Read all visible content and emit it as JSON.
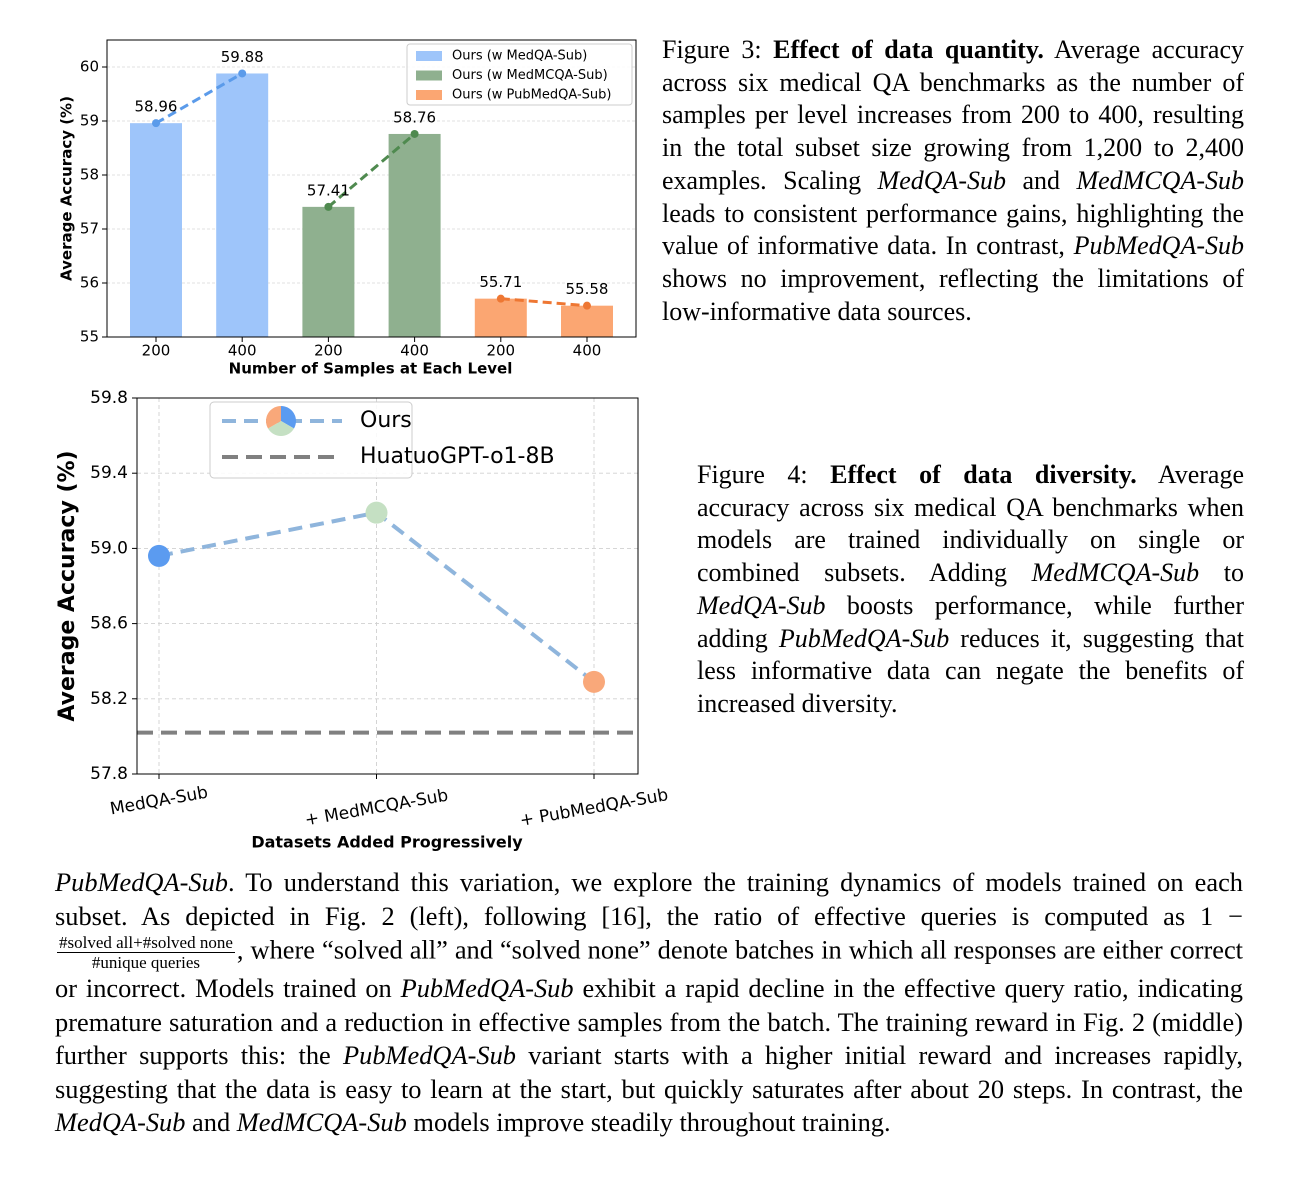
{
  "chart_data": [
    {
      "type": "bar",
      "categories": [
        "200",
        "400",
        "200",
        "400",
        "200",
        "400"
      ],
      "series": [
        {
          "name": "Ours (w MedQA-Sub)",
          "color": "#9ec5fa",
          "line_color": "#5b9bea",
          "values": [
            58.96,
            59.88,
            null,
            null,
            null,
            null
          ]
        },
        {
          "name": "Ours (w MedMCQA-Sub)",
          "color": "#8fb08f",
          "line_color": "#4f8a4f",
          "values": [
            null,
            null,
            57.41,
            58.76,
            null,
            null
          ]
        },
        {
          "name": "Ours (w PubMedQA-Sub)",
          "color": "#fba672",
          "line_color": "#ee7733",
          "values": [
            null,
            null,
            null,
            null,
            55.71,
            55.58
          ]
        }
      ],
      "xlabel": "Number of Samples at Each Level",
      "ylabel": "Average Accuracy (%)",
      "ylim": [
        55,
        60.5
      ],
      "yticks": [
        55,
        56,
        57,
        58,
        59,
        60
      ],
      "grid": true,
      "legend": "upper right"
    },
    {
      "type": "line",
      "categories": [
        "MedQA-Sub",
        "+ MedMCQA-Sub",
        "+ PubMedQA-Sub"
      ],
      "series": [
        {
          "name": "Ours",
          "color": "#8fb5dc",
          "values": [
            58.96,
            59.19,
            58.29
          ],
          "point_colors": [
            "#5b9bf0",
            "#c5e0c3",
            "#f9a87a"
          ]
        }
      ],
      "baseline": {
        "name": "HuatuoGPT-o1-8B",
        "value": 58.02,
        "color": "#808080"
      },
      "xlabel": "Datasets Added Progressively",
      "ylabel": "Average Accuracy (%)",
      "ylim": [
        57.8,
        59.8
      ],
      "yticks": [
        57.8,
        58.2,
        58.6,
        {
          "value": 59,
          "label": "59.0"
        },
        59.4,
        59.8
      ],
      "grid": true,
      "legend": "upper left"
    }
  ],
  "captions": [
    {
      "parts": [
        {
          "text": "Figure 3: ",
          "style": "normal"
        },
        {
          "text": "Effect of data quantity.",
          "style": "bold"
        },
        {
          "text": " Average accuracy across six medical QA benchmarks as the number of samples per level increases from 200 to 400, resulting in the total subset size growing from 1,200 to 2,400 examples. Scaling ",
          "style": "normal"
        },
        {
          "text": "MedQA-Sub",
          "style": "italic"
        },
        {
          "text": " and ",
          "style": "normal"
        },
        {
          "text": "MedMCQA-Sub",
          "style": "italic"
        },
        {
          "text": " leads to consistent performance gains, highlighting the value of informative data. In contrast, ",
          "style": "normal"
        },
        {
          "text": "PubMedQA-Sub",
          "style": "italic"
        },
        {
          "text": " shows no improvement, reflecting the limitations of low-informative data sources.",
          "style": "normal"
        }
      ]
    },
    {
      "parts": [
        {
          "text": "Figure 4: ",
          "style": "normal"
        },
        {
          "text": "Effect of data diversity.",
          "style": "bold"
        },
        {
          "text": " Average accuracy across six medical QA benchmarks when models are trained individually on single or combined subsets. Adding ",
          "style": "normal"
        },
        {
          "text": "MedMCQA-Sub",
          "style": "italic"
        },
        {
          "text": " to ",
          "style": "normal"
        },
        {
          "text": "MedQA-Sub",
          "style": "italic"
        },
        {
          "text": " boosts performance, while further adding ",
          "style": "normal"
        },
        {
          "text": "PubMedQA-Sub",
          "style": "italic"
        },
        {
          "text": " reduces it, suggesting that less informative data can negate the benefits of increased diversity.",
          "style": "normal"
        }
      ]
    }
  ],
  "body": {
    "parts": [
      {
        "text": "PubMedQA-Sub",
        "style": "italic"
      },
      {
        "text": ". To understand this variation, we explore the training dynamics of models trained on each subset. As depicted in Fig. 2 (left), following [16], the ratio of effective queries is computed as 1 − ",
        "style": "normal"
      },
      {
        "num": "#solved all+#solved none",
        "den": "#unique queries"
      },
      {
        "text": ", where “solved all” and “solved none” denote batches in which all responses are either correct or incorrect. Models trained on ",
        "style": "normal"
      },
      {
        "text": "PubMedQA-Sub",
        "style": "italic"
      },
      {
        "text": " exhibit a rapid decline in the effective query ratio, indicating premature saturation and a reduction in effective samples from the batch. The training reward in Fig. 2 (middle) further supports this: the ",
        "style": "normal"
      },
      {
        "text": "PubMedQA-Sub",
        "style": "italic"
      },
      {
        "text": " variant starts with a higher initial reward and increases rapidly, suggesting that the data is easy to learn at the start, but quickly saturates after about 20 steps. In contrast, the ",
        "style": "normal"
      },
      {
        "text": "MedQA-Sub",
        "style": "italic"
      },
      {
        "text": " and ",
        "style": "normal"
      },
      {
        "text": "MedMCQA-Sub",
        "style": "italic"
      },
      {
        "text": " models improve steadily throughout training.",
        "style": "normal"
      }
    ]
  }
}
